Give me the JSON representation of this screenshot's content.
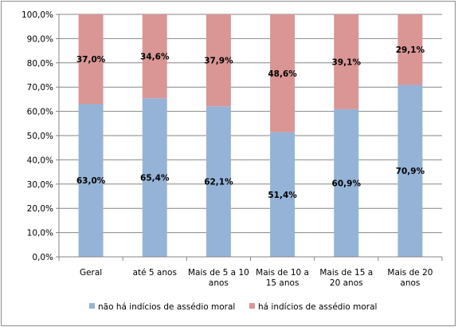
{
  "chart_data": {
    "type": "bar",
    "stacked": true,
    "percent": true,
    "title": "",
    "xlabel": "",
    "ylabel": "",
    "ylim": [
      0,
      100
    ],
    "yticks": [
      "0,0%",
      "10,0%",
      "20,0%",
      "30,0%",
      "40,0%",
      "50,0%",
      "60,0%",
      "70,0%",
      "80,0%",
      "90,0%",
      "100,0%"
    ],
    "categories": [
      [
        "Geral"
      ],
      [
        "até 5 anos"
      ],
      [
        "Mais de 5 a 10",
        "anos"
      ],
      [
        "Mais de 10 a",
        "15 anos"
      ],
      [
        "Mais de 15 a",
        "20 anos"
      ],
      [
        "Mais de 20",
        "anos"
      ]
    ],
    "series": [
      {
        "name": "não há indícios de assédio moral",
        "color": "#95b3d7",
        "values": [
          63.0,
          65.4,
          62.1,
          51.4,
          60.9,
          70.9
        ],
        "labels": [
          "63,0%",
          "65,4%",
          "62,1%",
          "51,4%",
          "60,9%",
          "70,9%"
        ]
      },
      {
        "name": "há indícios de assédio moral",
        "color": "#d99694",
        "values": [
          37.0,
          34.6,
          37.9,
          48.6,
          39.1,
          29.1
        ],
        "labels": [
          "37,0%",
          "34,6%",
          "37,9%",
          "48,6%",
          "39,1%",
          "29,1%"
        ]
      }
    ],
    "grid": true,
    "legend": "bottom"
  }
}
